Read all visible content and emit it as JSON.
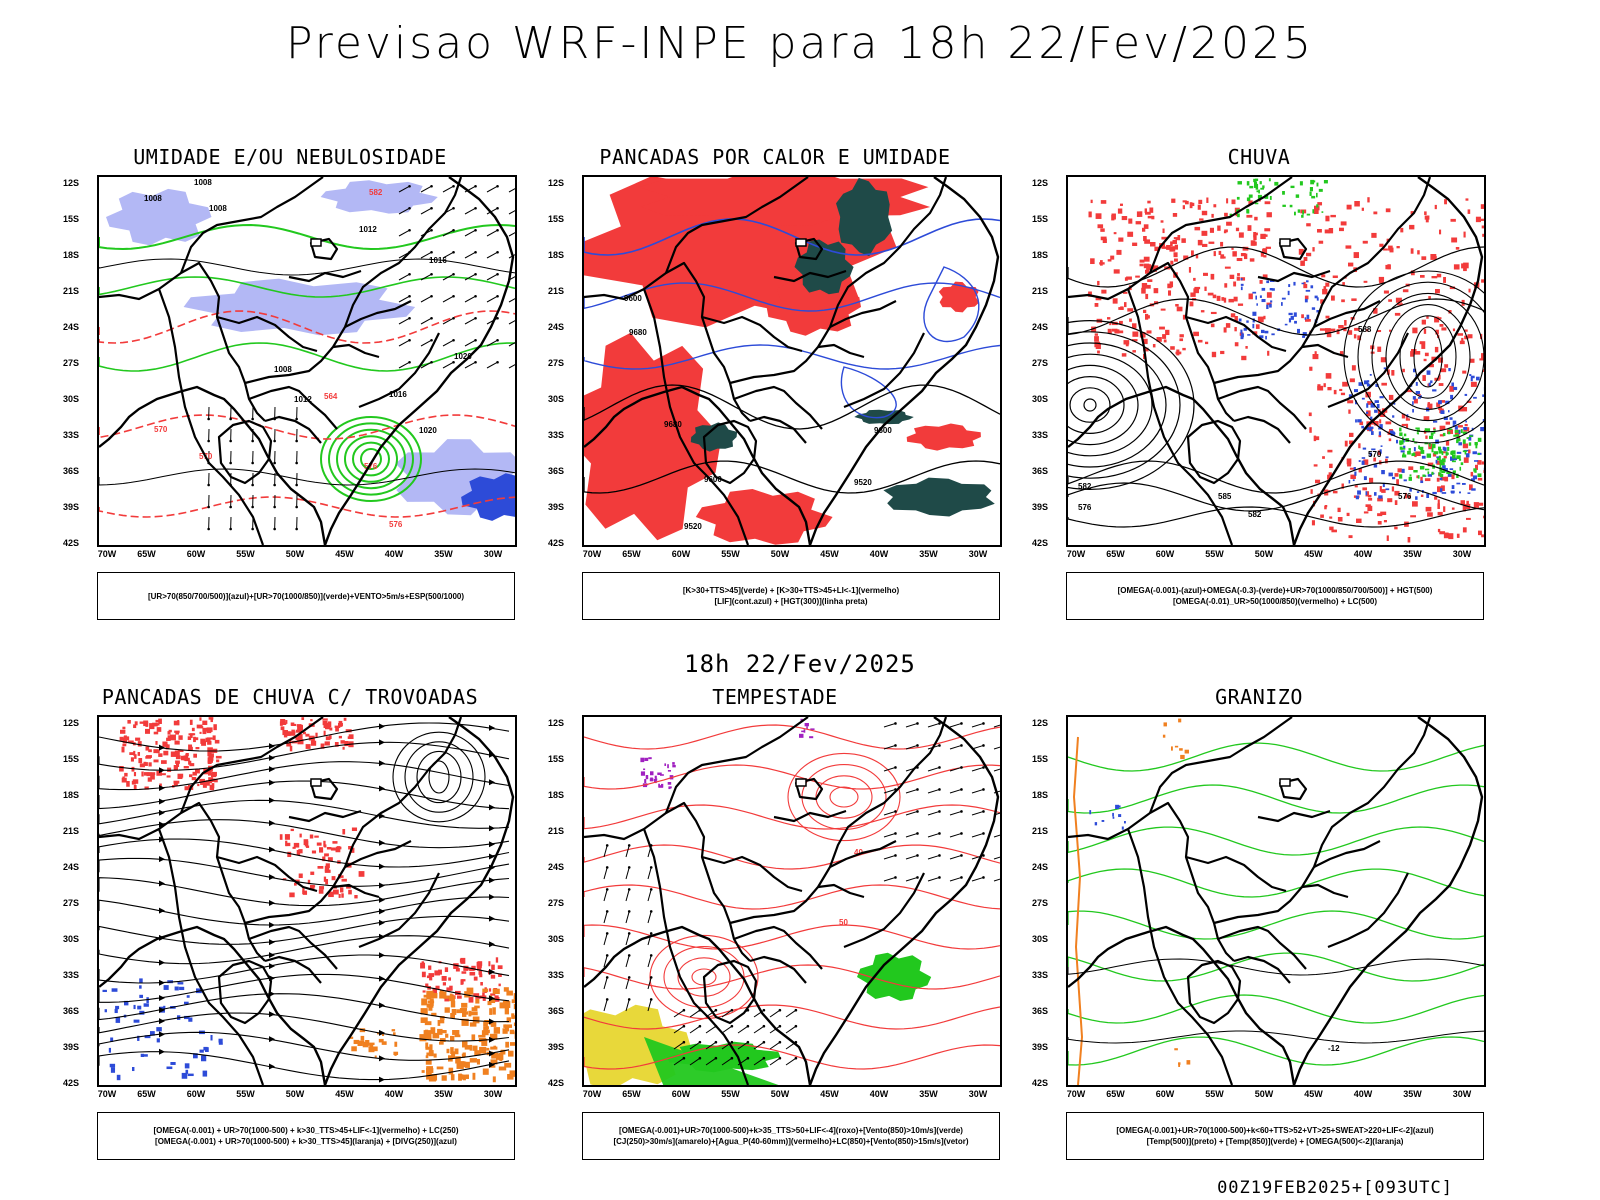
{
  "title": "Previsao WRF-INPE  para 18h 22/Fev/2025",
  "subtitle": "18h 22/Fev/2025",
  "footer": "00Z19FEB2025+[093UTC]",
  "axes": {
    "lat_labels": [
      "12S",
      "15S",
      "18S",
      "21S",
      "24S",
      "27S",
      "30S",
      "33S",
      "36S",
      "39S",
      "42S"
    ],
    "lon_labels": [
      "70W",
      "65W",
      "60W",
      "55W",
      "50W",
      "45W",
      "40W",
      "35W",
      "30W"
    ]
  },
  "colors": {
    "blue": "#2d4bd8",
    "green": "#22c81e",
    "red": "#f23b3b",
    "lavender": "#b3b8f5",
    "darkteal": "#1f4a48",
    "orange": "#f08020",
    "yellow": "#e8d83a",
    "purple": "#a020c0"
  },
  "panels": [
    {
      "title": "UMIDADE E/OU NEBULOSIDADE",
      "legend": [
        "[UR>70(850/700/500)](azul)+[UR>70(1000/850)](verde)+VENTO>5m/s+ESP(500/1000)"
      ],
      "contour_labels": [
        "1008",
        "1008",
        "1008",
        "1012",
        "1016",
        "1020",
        "1016",
        "1020",
        "1008",
        "1012",
        "576",
        "576",
        "570",
        "570",
        "582",
        "564"
      ]
    },
    {
      "title": "PANCADAS POR CALOR E UMIDADE",
      "legend": [
        "[K>30+TTS>45](verde) + [K>30+TTS>45+LI<-1](vermelho)",
        "[LIF](cont.azul) + [HGT(300)](linha preta)"
      ],
      "contour_labels": [
        "9600",
        "9680",
        "9680",
        "9520",
        "9600",
        "9520",
        "9600"
      ]
    },
    {
      "title": "CHUVA",
      "legend": [
        "[OMEGA(-0.001)-(azul)+OMEGA(-0.3)-(verde)+UR>70(1000/850/700/500)] + HGT(500)",
        "[OMEGA(-0.01)_UR>50(1000/850)(vermelho) + LC(500)"
      ],
      "contour_labels": [
        "588",
        "582",
        "576",
        "585",
        "582",
        "576",
        "570"
      ]
    },
    {
      "title": "PANCADAS DE CHUVA C/ TROVOADAS",
      "legend": [
        "[OMEGA(-0.001) + UR>70(1000-500) + k>30_TTS>45+LIF<-1](vermelho) + LC(250)",
        "[OMEGA(-0.001) + UR>70(1000-500) + k>30_TTS>45](laranja) + [DIVG(250)](azul)"
      ],
      "contour_labels": []
    },
    {
      "title": "TEMPESTADE",
      "legend": [
        "[OMEGA(-0.001)+UR>70(1000-500)+k>35_TTS>50+LIF<-4](roxo)+[Vento(850)>10m/s](verde)",
        "[CJ(250)>30m/s](amarelo)+[Agua_P(40-60mm)](vermelho)+LC(850)+[Vento(850)>15m/s](vetor)"
      ],
      "contour_labels": [
        "40",
        "50"
      ]
    },
    {
      "title": "GRANIZO",
      "legend": [
        "[OMEGA(-0.001)+UR>70(1000-500)+k<60+TTS>52+VT>25+SWEAT>220+LIF<-2](azul)",
        "[Temp(500)](preto) + [Temp(850)](verde) + [OMEGA(500)<-2](laranja)"
      ],
      "contour_labels": [
        "-12"
      ]
    }
  ]
}
